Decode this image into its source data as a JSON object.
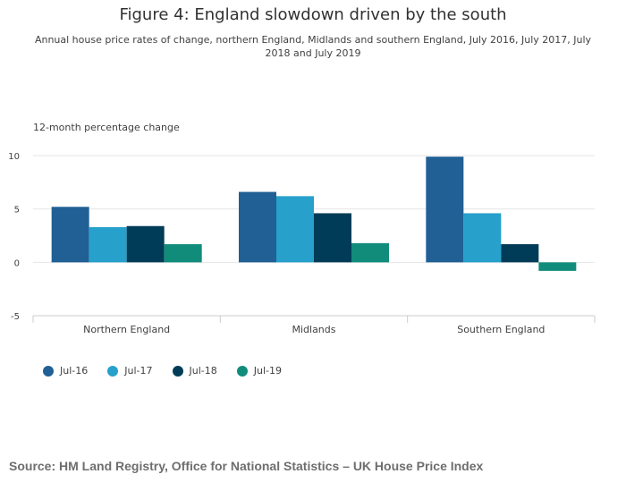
{
  "title": "Figure 4: England slowdown driven by the south",
  "subtitle": "Annual house price rates of change, northern England, Midlands and southern England, July 2016, July 2017, July 2018 and July 2019",
  "ylabel": "12-month percentage change",
  "source": "Source: HM Land Registry, Office for National Statistics – UK House Price Index",
  "chart_data": {
    "type": "bar",
    "title": "Figure 4: England slowdown driven by the south",
    "subtitle": "Annual house price rates of change, northern England, Midlands and southern England, July 2016, July 2017, July 2018 and July 2019",
    "xlabel": "",
    "ylabel": "12-month percentage change",
    "ylim": [
      -5,
      10
    ],
    "yticks": [
      -5,
      0,
      5,
      10
    ],
    "grid": true,
    "legend_position": "bottom-left",
    "categories": [
      "Northern England",
      "Midlands",
      "Southern England"
    ],
    "series": [
      {
        "name": "Jul-16",
        "color": "#206095",
        "values": [
          5.2,
          6.6,
          9.9
        ]
      },
      {
        "name": "Jul-17",
        "color": "#27a0cc",
        "values": [
          3.3,
          6.2,
          4.6
        ]
      },
      {
        "name": "Jul-18",
        "color": "#003c57",
        "values": [
          3.4,
          4.6,
          1.7
        ]
      },
      {
        "name": "Jul-19",
        "color": "#118c7b",
        "values": [
          1.7,
          1.8,
          -0.8
        ]
      }
    ]
  }
}
